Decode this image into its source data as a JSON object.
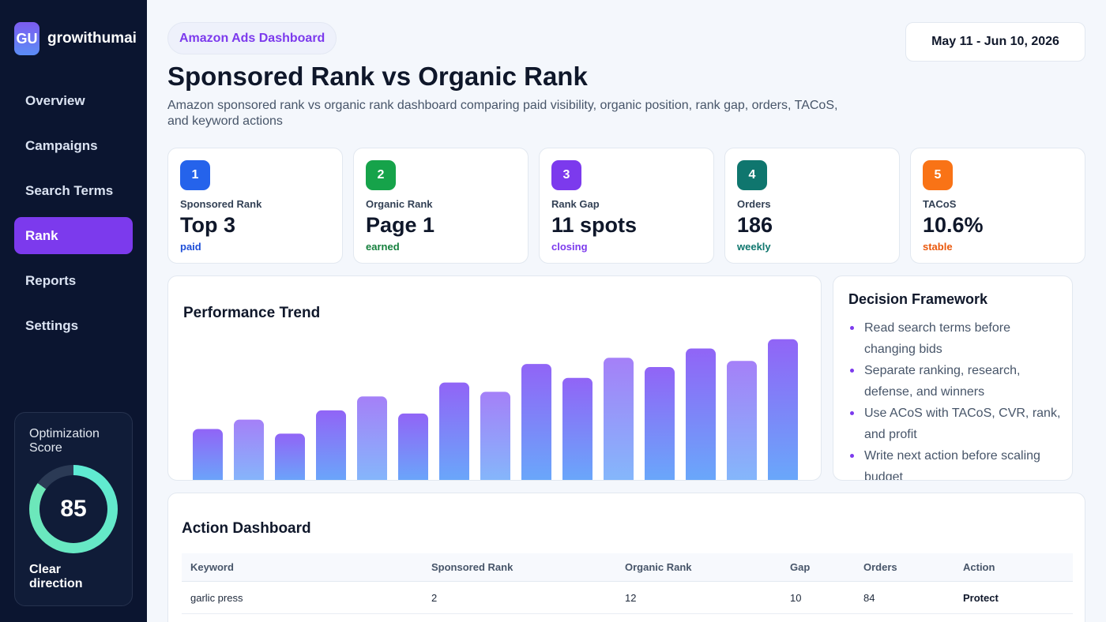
{
  "brand": {
    "logo": "GU",
    "name": "growithumai"
  },
  "sidebar": {
    "items": [
      {
        "label": "Overview",
        "active": false
      },
      {
        "label": "Campaigns",
        "active": false
      },
      {
        "label": "Search Terms",
        "active": false
      },
      {
        "label": "Rank",
        "active": true
      },
      {
        "label": "Reports",
        "active": false
      },
      {
        "label": "Settings",
        "active": false
      }
    ],
    "score": {
      "title": "Optimization Score",
      "value": "85",
      "percent": 85,
      "label": "Clear direction"
    }
  },
  "header": {
    "pill": "Amazon Ads Dashboard",
    "title": "Sponsored Rank vs Organic Rank",
    "subtitle": "Amazon sponsored rank vs organic rank dashboard comparing paid visibility, organic position, rank gap, orders, TACoS, and keyword actions",
    "date_range": "May 11 - Jun 10, 2026"
  },
  "kpis": [
    {
      "num": "1",
      "label": "Sponsored Rank",
      "value": "Top 3",
      "note": "paid",
      "color": "#2563eb",
      "note_color": "#1d4ed8"
    },
    {
      "num": "2",
      "label": "Organic Rank",
      "value": "Page 1",
      "note": "earned",
      "color": "#16a34a",
      "note_color": "#15803d"
    },
    {
      "num": "3",
      "label": "Rank Gap",
      "value": "11 spots",
      "note": "closing",
      "color": "#7c3aed",
      "note_color": "#7c3aed"
    },
    {
      "num": "4",
      "label": "Orders",
      "value": "186",
      "note": "weekly",
      "color": "#0f766e",
      "note_color": "#0f766e"
    },
    {
      "num": "5",
      "label": "TACoS",
      "value": "10.6%",
      "note": "stable",
      "color": "#f97316",
      "note_color": "#ea580c"
    }
  ],
  "chart_data": {
    "type": "bar",
    "title": "Performance Trend",
    "values": [
      36,
      42,
      33,
      48,
      57,
      46,
      66,
      60,
      78,
      69,
      82,
      76,
      88,
      80,
      94
    ],
    "ylim": [
      0,
      100
    ],
    "colors": {
      "top": "#8b5cf6",
      "bottom": "#60a5fa"
    }
  },
  "decision": {
    "title": "Decision Framework",
    "items": [
      "Read search terms before changing bids",
      "Separate ranking, research, defense, and winners",
      "Use ACoS with TACoS, CVR, rank, and profit",
      "Write next action before scaling budget"
    ]
  },
  "action_dashboard": {
    "title": "Action Dashboard",
    "columns": [
      "Keyword",
      "Sponsored Rank",
      "Organic Rank",
      "Gap",
      "Orders",
      "Action"
    ],
    "rows": [
      [
        "garlic press",
        "2",
        "12",
        "10",
        "84",
        "Protect"
      ]
    ]
  }
}
